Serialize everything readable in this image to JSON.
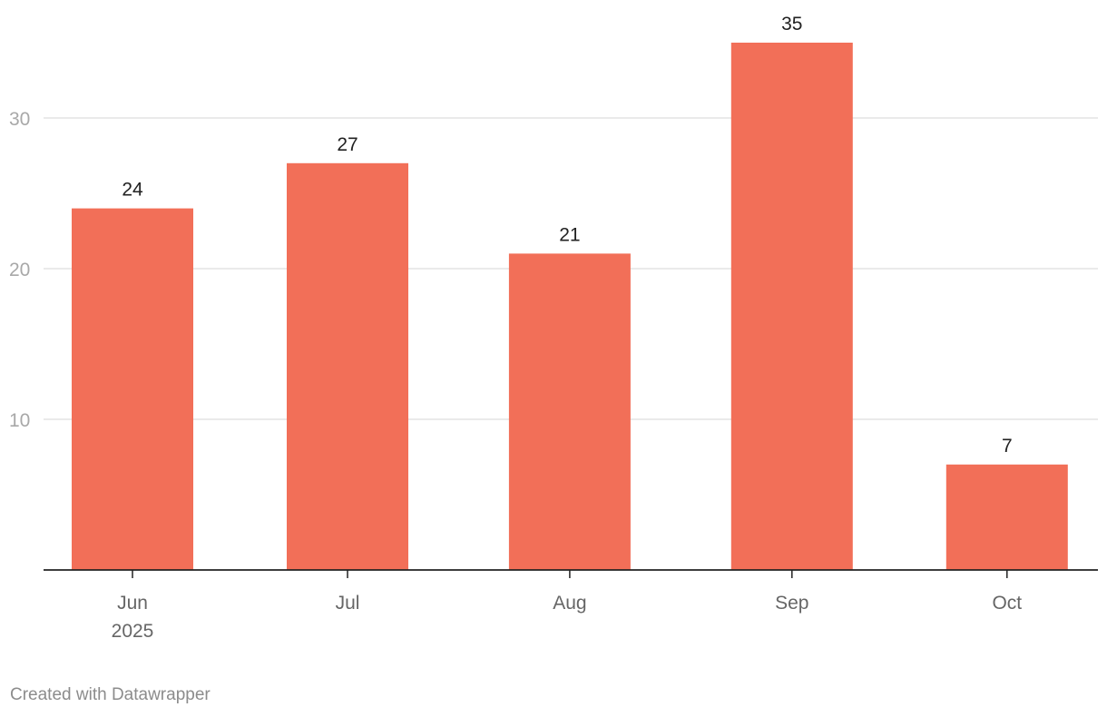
{
  "chart_data": {
    "type": "bar",
    "categories": [
      "Jun 2025",
      "Jul 2025",
      "Aug 2025",
      "Sep 2025",
      "Oct 2025"
    ],
    "tick_labels": [
      [
        "Jun",
        "2025"
      ],
      [
        "Jul"
      ],
      [
        "Aug"
      ],
      [
        "Sep"
      ],
      [
        "Oct"
      ]
    ],
    "values": [
      24,
      27,
      21,
      35,
      7
    ],
    "data_labels": [
      "24",
      "27",
      "21",
      "35",
      "7"
    ],
    "ylim": [
      0,
      35
    ],
    "yticks": [
      10,
      20,
      30
    ],
    "ytick_labels": [
      "10",
      "20",
      "30"
    ],
    "grid": true,
    "title": "",
    "xlabel": "",
    "ylabel": "",
    "colors": {
      "bar": "#f26f58",
      "grid": "#e3e3e3",
      "axis": "#222222"
    }
  },
  "footer": {
    "credit": "Created with Datawrapper"
  }
}
